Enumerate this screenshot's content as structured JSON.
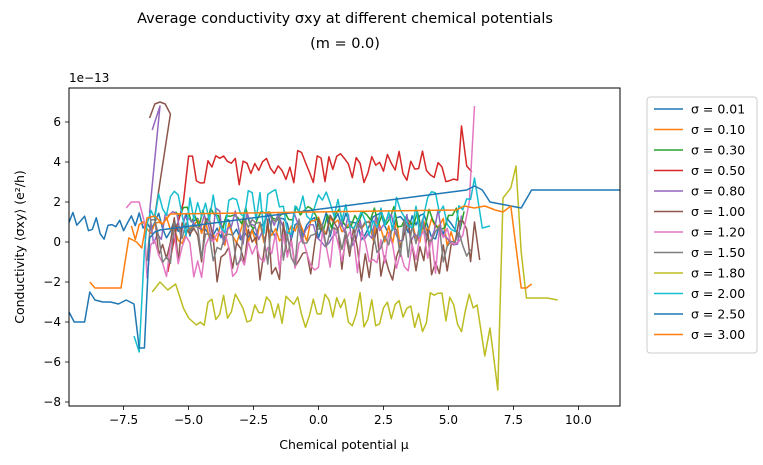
{
  "chart_data": {
    "type": "line",
    "title": "Average conductivity σxy at different chemical potentials",
    "subtitle": "(m = 0.0)",
    "xlabel": "Chemical potential μ",
    "ylabel": "Conductivity ⟨σxy⟩ (e²/h)",
    "y_offset_label": "1e−13",
    "xlim": [
      -9.6,
      11.6
    ],
    "ylim": [
      -8.2,
      7.7
    ],
    "xticks": [
      -7.5,
      -5.0,
      -2.5,
      0.0,
      2.5,
      5.0,
      7.5,
      10.0
    ],
    "xtick_labels": [
      "−7.5",
      "−5.0",
      "−2.5",
      "0.0",
      "2.5",
      "5.0",
      "7.5",
      "10.0"
    ],
    "yticks": [
      -8,
      -6,
      -4,
      -2,
      0,
      2,
      4,
      6
    ],
    "ytick_labels": [
      "−8",
      "−6",
      "−4",
      "−2",
      "0",
      "2",
      "4",
      "6"
    ],
    "grid": false,
    "legend_position": "outside-right",
    "series": [
      {
        "name": "σ = 0.01",
        "color": "#1f77b4",
        "kind": "noise",
        "x": [
          -9.6,
          5.4
        ],
        "noise_base": 0.8,
        "noise_amp": 0.7,
        "noise_step": 0.15
      },
      {
        "name": "σ = 0.10",
        "color": "#ff7f0e",
        "kind": "noise",
        "x": [
          -7.2,
          5.3
        ],
        "noise_base": 0.5,
        "noise_amp": 0.8,
        "noise_step": 0.15
      },
      {
        "name": "σ = 0.30",
        "color": "#2ca02c",
        "kind": "noise",
        "x": [
          -5.5,
          5.6
        ],
        "noise_base": 1.2,
        "noise_amp": 0.6,
        "noise_step": 0.15
      },
      {
        "name": "σ = 0.50",
        "color": "#d62728",
        "kind": "noise",
        "x": [
          -5.0,
          5.4
        ],
        "noise_base": 3.7,
        "noise_amp": 0.9,
        "noise_step": 0.15,
        "pre_x": [
          -5.8,
          -5.5,
          -5.2
        ],
        "pre_y": [
          -1.5,
          0.5,
          2.0
        ],
        "post_x": [
          5.5,
          5.7,
          5.9
        ],
        "post_y": [
          5.8,
          3.8,
          3.5
        ]
      },
      {
        "name": "σ = 0.80",
        "color": "#9467bd",
        "kind": "noise",
        "x": [
          -6.5,
          5.5
        ],
        "noise_base": 0.7,
        "noise_amp": 1.0,
        "noise_step": 0.15,
        "pre_x": [
          -6.4,
          -6.1
        ],
        "pre_y": [
          5.6,
          6.8
        ]
      },
      {
        "name": "σ = 1.00",
        "color": "#8c564b",
        "kind": "noise",
        "x": [
          -6.3,
          5.9
        ],
        "noise_base": -0.3,
        "noise_amp": 1.7,
        "noise_step": 0.15,
        "pre_x": [
          -6.5,
          -6.3,
          -6.1,
          -5.9,
          -5.7
        ],
        "pre_y": [
          6.2,
          6.9,
          7.0,
          6.9,
          6.4
        ],
        "post_x": [
          6.0,
          6.2
        ],
        "post_y": [
          1.0,
          -0.9
        ]
      },
      {
        "name": "σ = 1.20",
        "color": "#e377c2",
        "kind": "noise",
        "x": [
          -6.6,
          5.6
        ],
        "noise_base": -0.6,
        "noise_amp": 1.3,
        "noise_step": 0.15,
        "pre_x": [
          -7.4,
          -7.2,
          -6.9,
          -6.7
        ],
        "pre_y": [
          1.7,
          2.0,
          2.0,
          1.0
        ],
        "post_x": [
          5.8,
          6.0
        ],
        "post_y": [
          2.0,
          6.8
        ]
      },
      {
        "name": "σ = 1.50",
        "color": "#7f7f7f",
        "kind": "noise",
        "x": [
          -6.6,
          5.9
        ],
        "noise_base": 0.0,
        "noise_amp": 1.2,
        "noise_step": 0.15
      },
      {
        "name": "σ = 1.80",
        "color": "#bcbd22",
        "kind": "noise",
        "x": [
          -4.7,
          6.2
        ],
        "noise_base": -3.5,
        "noise_amp": 1.0,
        "noise_step": 0.15,
        "pre_x": [
          -6.4,
          -6.1,
          -5.8,
          -5.5,
          -5.2,
          -5.0
        ],
        "pre_y": [
          -2.5,
          -2.0,
          -2.4,
          -2.1,
          -3.3,
          -3.8
        ],
        "post_x": [
          6.4,
          6.6,
          6.9,
          7.1,
          7.4,
          7.6,
          7.8,
          8.0,
          8.3,
          8.8,
          9.2
        ],
        "post_y": [
          -5.7,
          -4.3,
          -7.4,
          2.2,
          2.7,
          3.8,
          -0.5,
          -2.8,
          -2.8,
          -2.8,
          -2.9
        ]
      },
      {
        "name": "σ = 2.00",
        "color": "#17becf",
        "kind": "noise",
        "x": [
          -6.6,
          5.9
        ],
        "noise_base": 1.5,
        "noise_amp": 1.2,
        "noise_step": 0.15,
        "pre_x": [
          -7.1,
          -6.9,
          -6.7
        ],
        "pre_y": [
          -4.7,
          -5.5,
          -0.4
        ],
        "post_x": [
          6.0,
          6.3,
          6.6
        ],
        "post_y": [
          3.2,
          0.7,
          0.8
        ]
      },
      {
        "name": "σ = 2.50",
        "color": "#1f77b4",
        "kind": "points",
        "x": [
          -9.6,
          -9.4,
          -9.0,
          -8.8,
          -8.6,
          -8.3,
          -8.0,
          -7.7,
          -7.4,
          -7.1,
          -6.9,
          -6.7,
          -6.5,
          -6.3,
          -6.1,
          5.7,
          6.0,
          6.3,
          6.6,
          7.0,
          7.4,
          7.8,
          8.2,
          9.0,
          10.0,
          11.0,
          11.6
        ],
        "y": [
          -3.5,
          -4.0,
          -4.0,
          -2.5,
          -2.9,
          -3.0,
          -3.0,
          -3.1,
          -2.9,
          -3.1,
          -5.3,
          -5.3,
          0.2,
          0.5,
          0.6,
          2.6,
          2.8,
          2.6,
          2.0,
          1.9,
          1.8,
          1.7,
          2.6,
          2.6,
          2.6,
          2.6,
          2.6
        ]
      },
      {
        "name": "σ = 3.00",
        "color": "#ff7f0e",
        "kind": "points",
        "x": [
          -8.8,
          -8.6,
          -8.3,
          -8.0,
          -7.6,
          -7.3,
          -7.0,
          -6.8,
          -6.6,
          -6.3,
          -6.0,
          -5.7,
          5.3,
          5.6,
          6.0,
          6.4,
          6.8,
          7.1,
          7.4,
          7.8,
          8.0,
          8.2
        ],
        "y": [
          -2.0,
          -2.3,
          -2.3,
          -2.3,
          -2.3,
          0.2,
          0.0,
          -0.3,
          1.2,
          1.3,
          0.9,
          1.4,
          1.6,
          1.8,
          1.7,
          1.8,
          1.6,
          1.5,
          1.8,
          -2.3,
          -2.3,
          -2.1
        ]
      }
    ]
  }
}
